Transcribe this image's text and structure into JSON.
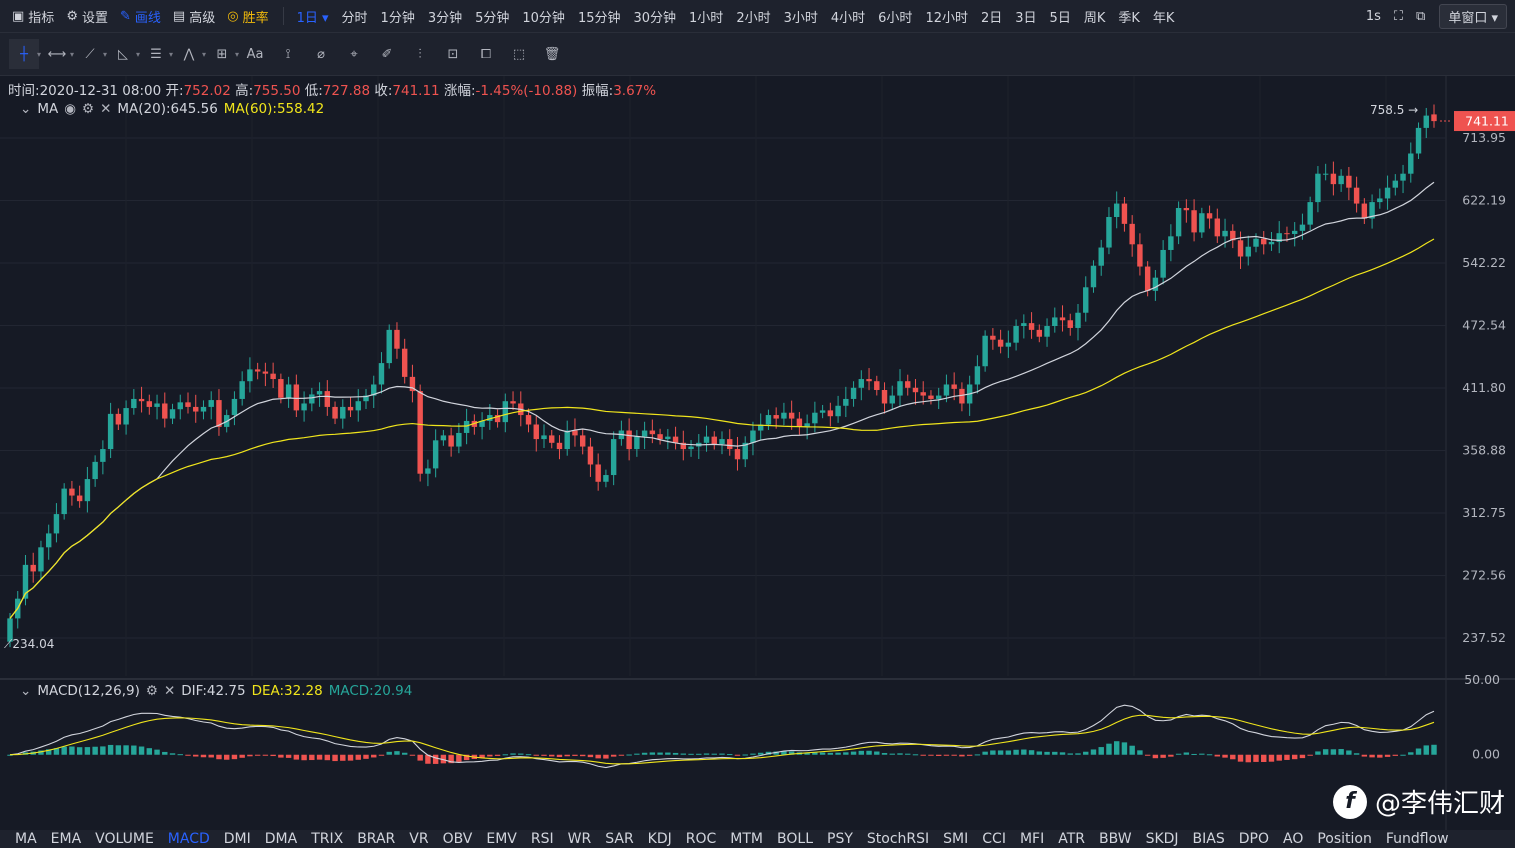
{
  "topbar": {
    "items": [
      {
        "label": "指标",
        "icon": "chart-icon"
      },
      {
        "label": "设置",
        "icon": "gear-icon"
      },
      {
        "label": "画线",
        "icon": "pen-icon"
      },
      {
        "label": "高级",
        "icon": "briefcase-icon"
      },
      {
        "label": "胜率",
        "icon": "coin-icon"
      }
    ],
    "interval_selected": "1日",
    "timeframes": [
      "分时",
      "1分钟",
      "3分钟",
      "5分钟",
      "10分钟",
      "15分钟",
      "30分钟",
      "1小时",
      "2小时",
      "3小时",
      "4小时",
      "6小时",
      "12小时",
      "2日",
      "3日",
      "5日",
      "周K",
      "季K",
      "年K"
    ],
    "refresh": "1s",
    "window_mode": "单窗口"
  },
  "toolbar": {
    "tools": [
      "crosshair-icon",
      "horizontal-line-icon",
      "trend-line-icon",
      "parallel-channel-icon",
      "fib-icon",
      "wave-icon",
      "measure-icon",
      "text-icon",
      "brush-icon",
      "eraser-icon",
      "ruler-icon",
      "pattern-icon",
      "lock-icon",
      "copy-icon",
      "screenshot-icon",
      "trash-icon"
    ],
    "text_tool_label": "Aa"
  },
  "ohlc": {
    "time_label": "时间:",
    "time": "2020-12-31 08:00",
    "open_label": "开:",
    "open": "752.02",
    "high_label": "高:",
    "high": "755.50",
    "low_label": "低:",
    "low": "727.88",
    "close_label": "收:",
    "close": "741.11",
    "change_label": "涨幅:",
    "change": "-1.45%(-10.88)",
    "amp_label": "振幅:",
    "amp": "3.67%"
  },
  "ma_legend": {
    "name": "MA",
    "ma20": "MA(20):645.56",
    "ma60": "MA(60):558.42"
  },
  "macd_legend": {
    "name": "MACD(12,26,9)",
    "dif": "DIF:42.75",
    "dea": "DEA:32.28",
    "macd": "MACD:20.94"
  },
  "indicators": [
    "MA",
    "EMA",
    "VOLUME",
    "MACD",
    "DMI",
    "DMA",
    "TRIX",
    "BRAR",
    "VR",
    "OBV",
    "EMV",
    "RSI",
    "WR",
    "SAR",
    "KDJ",
    "ROC",
    "MTM",
    "BOLL",
    "PSY",
    "StochRSI",
    "SMI",
    "CCI",
    "MFI",
    "ATR",
    "BBW",
    "SKDJ",
    "BIAS",
    "DPO",
    "AO",
    "Position",
    "Fundflow"
  ],
  "active_indicator": "MACD",
  "watermark": "@李伟汇财",
  "colors": {
    "up": "#26a69a",
    "down": "#ef5350",
    "ma20": "#d1d4dc",
    "ma60": "#f0e51c",
    "accent": "#2962ff"
  },
  "chart_data": {
    "type": "candlestick",
    "price_axis_ticks": [
      713.95,
      622.19,
      542.22,
      472.54,
      411.8,
      358.88,
      312.75,
      272.56,
      237.52
    ],
    "price_scale": "log",
    "last_price": "741.11",
    "high_marker": "758.5",
    "low_marker": "234.04",
    "macd_axis_ticks": [
      "50.00",
      "0.00"
    ],
    "macd_range": [
      -45,
      50
    ],
    "closes": [
      248,
      259,
      279,
      275,
      290,
      299,
      312,
      330,
      325,
      321,
      337,
      350,
      360,
      389,
      380,
      394,
      402,
      400,
      395,
      398,
      385,
      393,
      399,
      395,
      391,
      395,
      401,
      378,
      388,
      402,
      418,
      429,
      427,
      425,
      420,
      403,
      415,
      392,
      398,
      406,
      409,
      395,
      385,
      395,
      392,
      400,
      405,
      415,
      435,
      468,
      449,
      422,
      409,
      341,
      345,
      367,
      371,
      362,
      373,
      383,
      378,
      383,
      388,
      382,
      400,
      398,
      388,
      380,
      368,
      371,
      365,
      360,
      375,
      371,
      362,
      348,
      335,
      340,
      368,
      375,
      360,
      370,
      375,
      372,
      368,
      370,
      365,
      360,
      362,
      365,
      370,
      364,
      368,
      360,
      352,
      365,
      375,
      380,
      388,
      385,
      390,
      385,
      378,
      381,
      390,
      392,
      387,
      396,
      402,
      412,
      420,
      418,
      410,
      398,
      405,
      418,
      412,
      408,
      405,
      402,
      405,
      415,
      411,
      398,
      415,
      432,
      462,
      458,
      451,
      455,
      472,
      475,
      468,
      461,
      472,
      481,
      478,
      470,
      486,
      514,
      539,
      561,
      600,
      618,
      591,
      565,
      538,
      510,
      525,
      558,
      575,
      612,
      609,
      580,
      605,
      598,
      575,
      582,
      570,
      550,
      562,
      572,
      565,
      568,
      579,
      578,
      582,
      590,
      620,
      660,
      660,
      645,
      657,
      640,
      618,
      598,
      620,
      625,
      640,
      650,
      660,
      690,
      730,
      750,
      741
    ],
    "ma20_note": "MA(20) line",
    "ma60_note": "MA(60) line"
  }
}
